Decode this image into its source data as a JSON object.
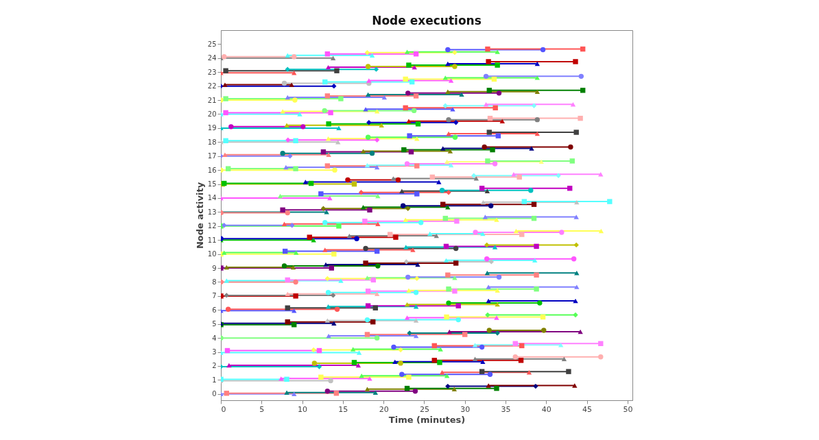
{
  "chart_data": {
    "type": "line",
    "title": "Node executions",
    "xlabel": "Time (minutes)",
    "ylabel": "Node activity",
    "xlim": [
      0,
      50.6
    ],
    "ylim": [
      -0.45,
      26
    ],
    "xticks": [
      0,
      5,
      10,
      15,
      20,
      25,
      30,
      35,
      40,
      45,
      50
    ],
    "yticks": [
      0,
      1,
      2,
      3,
      4,
      5,
      6,
      7,
      8,
      9,
      10,
      11,
      12,
      13,
      14,
      15,
      16,
      17,
      18,
      19,
      20,
      21,
      22,
      23,
      24,
      25
    ],
    "grid": false,
    "legend": false,
    "series": [
      {
        "color": "#808080",
        "marker": "triangle",
        "x": [
          0,
          13.8
        ],
        "values": [
          24,
          24
        ]
      },
      {
        "color": "#ffafaf",
        "marker": "circle",
        "x": [
          0.4,
          9
        ],
        "values": [
          24.1,
          24.1
        ]
      },
      {
        "color": "#55ffff",
        "marker": "triangle",
        "x": [
          8.2,
          18.6
        ],
        "values": [
          24.2,
          24.2
        ]
      },
      {
        "color": "#ff55ff",
        "marker": "square",
        "x": [
          13.1,
          24
        ],
        "values": [
          24.3,
          24.3
        ]
      },
      {
        "color": "#ffff55",
        "marker": "diamond",
        "x": [
          18,
          28.75
        ],
        "values": [
          24.4,
          24.4
        ]
      },
      {
        "color": "#55ff55",
        "marker": "triangle",
        "x": [
          22.9,
          34
        ],
        "values": [
          24.45,
          24.45
        ]
      },
      {
        "color": "#5555ff",
        "marker": "circle",
        "x": [
          27.9,
          39.6
        ],
        "values": [
          24.6,
          24.6
        ]
      },
      {
        "color": "#ff5555",
        "marker": "square",
        "x": [
          32.8,
          44.5
        ],
        "values": [
          24.65,
          24.65
        ]
      },
      {
        "color": "#ff5555",
        "marker": "triangle",
        "x": [
          0,
          9
        ],
        "values": [
          22.95,
          22.95
        ]
      },
      {
        "color": "#404040",
        "marker": "square",
        "x": [
          0.6,
          14.25
        ],
        "values": [
          23.1,
          23.1
        ]
      },
      {
        "color": "#00c0c0",
        "marker": "diamond",
        "x": [
          8.2,
          19.1
        ],
        "values": [
          23.2,
          23.2
        ]
      },
      {
        "color": "#c000c0",
        "marker": "triangle",
        "x": [
          13.2,
          23.8
        ],
        "values": [
          23.35,
          23.35
        ]
      },
      {
        "color": "#c0c000",
        "marker": "circle",
        "x": [
          18.1,
          28.75
        ],
        "values": [
          23.4,
          23.4
        ]
      },
      {
        "color": "#00c000",
        "marker": "square",
        "x": [
          23.1,
          34
        ],
        "values": [
          23.5,
          23.5
        ]
      },
      {
        "color": "#0000c0",
        "marker": "triangle",
        "x": [
          27.9,
          38.9
        ],
        "values": [
          23.6,
          23.6
        ]
      },
      {
        "color": "#c00000",
        "marker": "square",
        "x": [
          32.9,
          43.6
        ],
        "values": [
          23.75,
          23.75
        ]
      },
      {
        "color": "#0000c0",
        "marker": "diamond",
        "x": [
          0,
          13.9
        ],
        "values": [
          22,
          22
        ]
      },
      {
        "color": "#800000",
        "marker": "triangle",
        "x": [
          0.5,
          8.7
        ],
        "values": [
          22.1,
          22.1
        ]
      },
      {
        "color": "#c0c0c0",
        "marker": "circle",
        "x": [
          7.8,
          18.2
        ],
        "values": [
          22.2,
          22.2
        ]
      },
      {
        "color": "#55ffff",
        "marker": "square",
        "x": [
          12.8,
          23.5
        ],
        "values": [
          22.3,
          22.3
        ]
      },
      {
        "color": "#ff55ff",
        "marker": "triangle",
        "x": [
          18.2,
          28.3
        ],
        "values": [
          22.4,
          22.4
        ]
      },
      {
        "color": "#ffff55",
        "marker": "square",
        "x": [
          22.7,
          33.6
        ],
        "values": [
          22.5,
          22.5
        ]
      },
      {
        "color": "#55ff55",
        "marker": "triangle",
        "x": [
          27.6,
          38.9
        ],
        "values": [
          22.6,
          22.6
        ]
      },
      {
        "color": "#8080ff",
        "marker": "circle",
        "x": [
          32.6,
          44.3
        ],
        "values": [
          22.7,
          22.7
        ]
      },
      {
        "color": "#ffff55",
        "marker": "circle",
        "x": [
          0,
          9.1
        ],
        "values": [
          21,
          21
        ]
      },
      {
        "color": "#80ff80",
        "marker": "square",
        "x": [
          0.6,
          14.75
        ],
        "values": [
          21.1,
          21.1
        ]
      },
      {
        "color": "#8080ff",
        "marker": "triangle",
        "x": [
          8.2,
          20.1
        ],
        "values": [
          21.2,
          21.2
        ]
      },
      {
        "color": "#ff8080",
        "marker": "square",
        "x": [
          13.1,
          24
        ],
        "values": [
          21.3,
          21.3
        ]
      },
      {
        "color": "#008080",
        "marker": "triangle",
        "x": [
          18.1,
          29.6
        ],
        "values": [
          21.4,
          21.4
        ]
      },
      {
        "color": "#800080",
        "marker": "circle",
        "x": [
          23,
          34.2
        ],
        "values": [
          21.5,
          21.5
        ]
      },
      {
        "color": "#808000",
        "marker": "triangle",
        "x": [
          27.9,
          38.9
        ],
        "values": [
          21.6,
          21.6
        ]
      },
      {
        "color": "#008000",
        "marker": "square",
        "x": [
          33,
          44.5
        ],
        "values": [
          21.7,
          21.7
        ]
      },
      {
        "color": "#55ffff",
        "marker": "triangle",
        "x": [
          0,
          9.7
        ],
        "values": [
          20,
          20
        ]
      },
      {
        "color": "#ff55ff",
        "marker": "square",
        "x": [
          0.6,
          13.5
        ],
        "values": [
          20.1,
          20.1
        ]
      },
      {
        "color": "#ffff55",
        "marker": "triangle",
        "x": [
          7.6,
          19.2
        ],
        "values": [
          20.2,
          20.2
        ]
      },
      {
        "color": "#80ff80",
        "marker": "circle",
        "x": [
          12.75,
          23.75
        ],
        "values": [
          20.25,
          20.25
        ]
      },
      {
        "color": "#5555ff",
        "marker": "triangle",
        "x": [
          17.8,
          28.5
        ],
        "values": [
          20.35,
          20.35
        ]
      },
      {
        "color": "#ff5555",
        "marker": "square",
        "x": [
          22.7,
          33.75
        ],
        "values": [
          20.45,
          20.45
        ]
      },
      {
        "color": "#80ffff",
        "marker": "diamond",
        "x": [
          27.6,
          38.5
        ],
        "values": [
          20.6,
          20.6
        ]
      },
      {
        "color": "#ff80ff",
        "marker": "triangle",
        "x": [
          32.6,
          43.3
        ],
        "values": [
          20.7,
          20.7
        ]
      },
      {
        "color": "#00c0c0",
        "marker": "triangle",
        "x": [
          0,
          14.5
        ],
        "values": [
          19,
          19
        ]
      },
      {
        "color": "#c000c0",
        "marker": "circle",
        "x": [
          1.25,
          10.1
        ],
        "values": [
          19.1,
          19.1
        ]
      },
      {
        "color": "#c0c000",
        "marker": "triangle",
        "x": [
          8.1,
          19.75
        ],
        "values": [
          19.2,
          19.2
        ]
      },
      {
        "color": "#00c000",
        "marker": "square",
        "x": [
          13.25,
          24.25
        ],
        "values": [
          19.3,
          19.3
        ]
      },
      {
        "color": "#0000c0",
        "marker": "diamond",
        "x": [
          18.2,
          28.9
        ],
        "values": [
          19.4,
          19.4
        ]
      },
      {
        "color": "#c00000",
        "marker": "triangle",
        "x": [
          23.1,
          34.6
        ],
        "values": [
          19.5,
          19.5
        ]
      },
      {
        "color": "#808080",
        "marker": "circle",
        "x": [
          28,
          38.9
        ],
        "values": [
          19.6,
          19.6
        ]
      },
      {
        "color": "#ffafaf",
        "marker": "square",
        "x": [
          33.1,
          44.2
        ],
        "values": [
          19.7,
          19.7
        ]
      },
      {
        "color": "#c0c0c0",
        "marker": "triangle",
        "x": [
          0,
          14.4
        ],
        "values": [
          18,
          18
        ]
      },
      {
        "color": "#55ffff",
        "marker": "square",
        "x": [
          0.6,
          9.2
        ],
        "values": [
          18.1,
          18.1
        ]
      },
      {
        "color": "#ff55ff",
        "marker": "diamond",
        "x": [
          8.25,
          19.2
        ],
        "values": [
          18.15,
          18.15
        ]
      },
      {
        "color": "#ffff55",
        "marker": "triangle",
        "x": [
          13.2,
          24.1
        ],
        "values": [
          18.25,
          18.25
        ]
      },
      {
        "color": "#55ff55",
        "marker": "circle",
        "x": [
          18.1,
          28.8
        ],
        "values": [
          18.35,
          18.35
        ]
      },
      {
        "color": "#5555ff",
        "marker": "square",
        "x": [
          23.2,
          34.1
        ],
        "values": [
          18.45,
          18.45
        ]
      },
      {
        "color": "#ff5555",
        "marker": "triangle",
        "x": [
          28,
          38.9
        ],
        "values": [
          18.6,
          18.6
        ]
      },
      {
        "color": "#404040",
        "marker": "square",
        "x": [
          33,
          43.7
        ],
        "values": [
          18.7,
          18.7
        ]
      },
      {
        "color": "#8080ff",
        "marker": "diamond",
        "x": [
          0,
          8.5
        ],
        "values": [
          17,
          17
        ]
      },
      {
        "color": "#ff8080",
        "marker": "triangle",
        "x": [
          0.5,
          13.25
        ],
        "values": [
          17.1,
          17.1
        ]
      },
      {
        "color": "#008080",
        "marker": "circle",
        "x": [
          7.6,
          18.6
        ],
        "values": [
          17.2,
          17.2
        ]
      },
      {
        "color": "#800080",
        "marker": "square",
        "x": [
          12.6,
          23.4
        ],
        "values": [
          17.3,
          17.3
        ]
      },
      {
        "color": "#808000",
        "marker": "triangle",
        "x": [
          17.5,
          28.2
        ],
        "values": [
          17.35,
          17.35
        ]
      },
      {
        "color": "#008000",
        "marker": "square",
        "x": [
          22.5,
          33.4
        ],
        "values": [
          17.45,
          17.45
        ]
      },
      {
        "color": "#000080",
        "marker": "triangle",
        "x": [
          27.3,
          38.2
        ],
        "values": [
          17.55,
          17.55
        ]
      },
      {
        "color": "#800000",
        "marker": "circle",
        "x": [
          32.4,
          43
        ],
        "values": [
          17.65,
          17.65
        ]
      },
      {
        "color": "#ffff55",
        "marker": "circle",
        "x": [
          0,
          14
        ],
        "values": [
          16,
          16
        ]
      },
      {
        "color": "#80ff80",
        "marker": "square",
        "x": [
          0.9,
          9.2
        ],
        "values": [
          16.1,
          16.1
        ]
      },
      {
        "color": "#8080ff",
        "marker": "triangle",
        "x": [
          8,
          19.2
        ],
        "values": [
          16.2,
          16.2
        ]
      },
      {
        "color": "#ff8080",
        "marker": "square",
        "x": [
          13.1,
          24.1
        ],
        "values": [
          16.3,
          16.3
        ]
      },
      {
        "color": "#80ffff",
        "marker": "triangle",
        "x": [
          18,
          28.3
        ],
        "values": [
          16.35,
          16.35
        ]
      },
      {
        "color": "#ff80ff",
        "marker": "circle",
        "x": [
          22.9,
          33.7
        ],
        "values": [
          16.45,
          16.45
        ]
      },
      {
        "color": "#ffff80",
        "marker": "triangle",
        "x": [
          27.8,
          39.4
        ],
        "values": [
          16.6,
          16.6
        ]
      },
      {
        "color": "#80ff80",
        "marker": "square",
        "x": [
          32.8,
          43.2
        ],
        "values": [
          16.65,
          16.65
        ]
      },
      {
        "color": "#c0c000",
        "marker": "square",
        "x": [
          0.2,
          16.4
        ],
        "values": [
          15,
          15
        ]
      },
      {
        "color": "#00c000",
        "marker": "square",
        "x": [
          0.4,
          11.1
        ],
        "values": [
          15.05,
          15.05
        ]
      },
      {
        "color": "#0000c0",
        "marker": "triangle",
        "x": [
          10.4,
          26.8
        ],
        "values": [
          15.15,
          15.15
        ]
      },
      {
        "color": "#c00000",
        "marker": "circle",
        "x": [
          15.6,
          21.8
        ],
        "values": [
          15.3,
          15.3
        ]
      },
      {
        "color": "#808080",
        "marker": "triangle",
        "x": [
          21.2,
          31.4
        ],
        "values": [
          15.4,
          15.4
        ]
      },
      {
        "color": "#ffafaf",
        "marker": "square",
        "x": [
          26,
          36.7
        ],
        "values": [
          15.5,
          15.5
        ]
      },
      {
        "color": "#80ffff",
        "marker": "diamond",
        "x": [
          31.1,
          41.5
        ],
        "values": [
          15.6,
          15.6
        ]
      },
      {
        "color": "#ff80ff",
        "marker": "triangle",
        "x": [
          36,
          46.7
        ],
        "values": [
          15.7,
          15.7
        ]
      },
      {
        "color": "#ff55ff",
        "marker": "triangle",
        "x": [
          0,
          13.4
        ],
        "values": [
          14,
          14
        ]
      },
      {
        "color": "#80ff80",
        "marker": "triangle",
        "x": [
          7.3,
          19.3
        ],
        "values": [
          14.15,
          14.15
        ]
      },
      {
        "color": "#5555ff",
        "marker": "square",
        "x": [
          12.3,
          24.1
        ],
        "values": [
          14.3,
          14.3
        ]
      },
      {
        "color": "#ff5555",
        "marker": "diamond",
        "x": [
          17.25,
          28
        ],
        "values": [
          14.4,
          14.4
        ]
      },
      {
        "color": "#404040",
        "marker": "triangle",
        "x": [
          22.25,
          32.75
        ],
        "values": [
          14.5,
          14.5
        ]
      },
      {
        "color": "#00c0c0",
        "marker": "circle",
        "x": [
          27.2,
          38.1
        ],
        "values": [
          14.55,
          14.55
        ]
      },
      {
        "color": "#c000c0",
        "marker": "square",
        "x": [
          32.1,
          42.9
        ],
        "values": [
          14.7,
          14.7
        ]
      },
      {
        "color": "#008080",
        "marker": "triangle",
        "x": [
          0,
          13
        ],
        "values": [
          13,
          13
        ]
      },
      {
        "color": "#ff8080",
        "marker": "circle",
        "x": [
          0,
          8.2
        ],
        "values": [
          12.95,
          12.95
        ]
      },
      {
        "color": "#800080",
        "marker": "square",
        "x": [
          7.6,
          18.3
        ],
        "values": [
          13.15,
          13.15
        ]
      },
      {
        "color": "#808000",
        "marker": "diamond",
        "x": [
          12.6,
          23
        ],
        "values": [
          13.25,
          13.25
        ]
      },
      {
        "color": "#008000",
        "marker": "triangle",
        "x": [
          17.5,
          27.9
        ],
        "values": [
          13.35,
          13.35
        ]
      },
      {
        "color": "#000080",
        "marker": "circle",
        "x": [
          22.4,
          33.2
        ],
        "values": [
          13.45,
          13.45
        ]
      },
      {
        "color": "#800000",
        "marker": "square",
        "x": [
          27.3,
          38.5
        ],
        "values": [
          13.55,
          13.55
        ]
      },
      {
        "color": "#c0c0c0",
        "marker": "triangle",
        "x": [
          32.25,
          43.75
        ],
        "values": [
          13.7,
          13.7
        ]
      },
      {
        "color": "#55ffff",
        "marker": "square",
        "x": [
          37.3,
          47.8
        ],
        "values": [
          13.75,
          13.75
        ]
      },
      {
        "color": "#55ff55",
        "marker": "square",
        "x": [
          0,
          14.5
        ],
        "values": [
          12,
          12
        ]
      },
      {
        "color": "#8080ff",
        "marker": "diamond",
        "x": [
          0.4,
          8.75
        ],
        "values": [
          12.05,
          12.05
        ]
      },
      {
        "color": "#ff5555",
        "marker": "triangle",
        "x": [
          7.8,
          19.3
        ],
        "values": [
          12.15,
          12.15
        ]
      },
      {
        "color": "#55ffff",
        "marker": "circle",
        "x": [
          12.8,
          24.6
        ],
        "values": [
          12.25,
          12.25
        ]
      },
      {
        "color": "#ff80ff",
        "marker": "square",
        "x": [
          17.7,
          29
        ],
        "values": [
          12.35,
          12.35
        ]
      },
      {
        "color": "#ffff55",
        "marker": "triangle",
        "x": [
          22.7,
          33.9
        ],
        "values": [
          12.45,
          12.45
        ]
      },
      {
        "color": "#80ff80",
        "marker": "square",
        "x": [
          27.6,
          38.5
        ],
        "values": [
          12.55,
          12.55
        ]
      },
      {
        "color": "#8080ff",
        "marker": "triangle",
        "x": [
          32.5,
          43.7
        ],
        "values": [
          12.65,
          12.65
        ]
      },
      {
        "color": "#00c000",
        "marker": "triangle",
        "x": [
          0,
          11.4
        ],
        "values": [
          11,
          11
        ]
      },
      {
        "color": "#0000c0",
        "marker": "circle",
        "x": [
          0,
          16.7
        ],
        "values": [
          11.1,
          11.1
        ]
      },
      {
        "color": "#c00000",
        "marker": "square",
        "x": [
          10.9,
          21.5
        ],
        "values": [
          11.2,
          11.2
        ]
      },
      {
        "color": "#808080",
        "marker": "triangle",
        "x": [
          15.8,
          26.5
        ],
        "values": [
          11.3,
          11.3
        ]
      },
      {
        "color": "#ffafaf",
        "marker": "square",
        "x": [
          20.8,
          37
        ],
        "values": [
          11.4,
          11.4
        ]
      },
      {
        "color": "#55ffff",
        "marker": "triangle",
        "x": [
          25.7,
          32.2
        ],
        "values": [
          11.45,
          11.45
        ]
      },
      {
        "color": "#ff80ff",
        "marker": "circle",
        "x": [
          31.3,
          41.9
        ],
        "values": [
          11.55,
          11.55
        ]
      },
      {
        "color": "#ffff55",
        "marker": "triangle",
        "x": [
          36.3,
          46.75
        ],
        "values": [
          11.65,
          11.65
        ]
      },
      {
        "color": "#ffff55",
        "marker": "square",
        "x": [
          0,
          13.9
        ],
        "values": [
          10,
          10
        ]
      },
      {
        "color": "#55ff55",
        "marker": "triangle",
        "x": [
          0.4,
          9.25
        ],
        "values": [
          10.1,
          10.1
        ]
      },
      {
        "color": "#5555ff",
        "marker": "square",
        "x": [
          7.9,
          19.2
        ],
        "values": [
          10.2,
          10.2
        ]
      },
      {
        "color": "#ff5555",
        "marker": "triangle",
        "x": [
          12.8,
          23.6
        ],
        "values": [
          10.3,
          10.3
        ]
      },
      {
        "color": "#404040",
        "marker": "circle",
        "x": [
          17.8,
          28.9
        ],
        "values": [
          10.4,
          10.4
        ]
      },
      {
        "color": "#00c0c0",
        "marker": "triangle",
        "x": [
          22.75,
          33.7
        ],
        "values": [
          10.5,
          10.5
        ]
      },
      {
        "color": "#c000c0",
        "marker": "square",
        "x": [
          27.7,
          38.8
        ],
        "values": [
          10.55,
          10.55
        ]
      },
      {
        "color": "#c0c000",
        "marker": "diamond",
        "x": [
          32.7,
          43.7
        ],
        "values": [
          10.65,
          10.65
        ]
      },
      {
        "color": "#800080",
        "marker": "square",
        "x": [
          0,
          13.6
        ],
        "values": [
          9,
          9
        ]
      },
      {
        "color": "#808000",
        "marker": "triangle",
        "x": [
          0.7,
          8.9
        ],
        "values": [
          9.05,
          9.05
        ]
      },
      {
        "color": "#008000",
        "marker": "circle",
        "x": [
          7.8,
          19.3
        ],
        "values": [
          9.15,
          9.15
        ]
      },
      {
        "color": "#000080",
        "marker": "triangle",
        "x": [
          12.9,
          24.2
        ],
        "values": [
          9.25,
          9.25
        ]
      },
      {
        "color": "#800000",
        "marker": "square",
        "x": [
          17.8,
          28.9
        ],
        "values": [
          9.35,
          9.35
        ]
      },
      {
        "color": "#c0c0c0",
        "marker": "diamond",
        "x": [
          22.8,
          33.25
        ],
        "values": [
          9.45,
          9.45
        ]
      },
      {
        "color": "#55ffff",
        "marker": "triangle",
        "x": [
          27.7,
          38.6
        ],
        "values": [
          9.55,
          9.55
        ]
      },
      {
        "color": "#ff55ff",
        "marker": "circle",
        "x": [
          32.7,
          43.4
        ],
        "values": [
          9.65,
          9.65
        ]
      },
      {
        "color": "#ff8080",
        "marker": "circle",
        "x": [
          0,
          9.2
        ],
        "values": [
          8,
          8
        ]
      },
      {
        "color": "#55ffff",
        "marker": "triangle",
        "x": [
          0.7,
          14.75
        ],
        "values": [
          8.1,
          8.1
        ]
      },
      {
        "color": "#ff80ff",
        "marker": "square",
        "x": [
          8.2,
          18.75
        ],
        "values": [
          8.15,
          8.15
        ]
      },
      {
        "color": "#ffff55",
        "marker": "diamond",
        "x": [
          13.1,
          24.1
        ],
        "values": [
          8.25,
          8.25
        ]
      },
      {
        "color": "#80ff80",
        "marker": "triangle",
        "x": [
          18,
          28.75
        ],
        "values": [
          8.3,
          8.3
        ]
      },
      {
        "color": "#8080ff",
        "marker": "circle",
        "x": [
          23,
          34.2
        ],
        "values": [
          8.35,
          8.35
        ]
      },
      {
        "color": "#ff8080",
        "marker": "square",
        "x": [
          27.9,
          38.8
        ],
        "values": [
          8.5,
          8.5
        ]
      },
      {
        "color": "#008080",
        "marker": "triangle",
        "x": [
          32.75,
          43.75
        ],
        "values": [
          8.65,
          8.65
        ]
      },
      {
        "color": "#c00000",
        "marker": "square",
        "x": [
          0,
          9.2
        ],
        "values": [
          7,
          7
        ]
      },
      {
        "color": "#808080",
        "marker": "diamond",
        "x": [
          0.7,
          13.8
        ],
        "values": [
          7.05,
          7.05
        ]
      },
      {
        "color": "#ffafaf",
        "marker": "triangle",
        "x": [
          8.2,
          19.2
        ],
        "values": [
          7.15,
          7.15
        ]
      },
      {
        "color": "#55ffff",
        "marker": "circle",
        "x": [
          13.2,
          24
        ],
        "values": [
          7.25,
          7.25
        ]
      },
      {
        "color": "#ff80ff",
        "marker": "square",
        "x": [
          18.1,
          28.75
        ],
        "values": [
          7.35,
          7.35
        ]
      },
      {
        "color": "#ffff55",
        "marker": "triangle",
        "x": [
          23.1,
          34
        ],
        "values": [
          7.4,
          7.4
        ]
      },
      {
        "color": "#80ff80",
        "marker": "square",
        "x": [
          28,
          38.8
        ],
        "values": [
          7.5,
          7.5
        ]
      },
      {
        "color": "#8080ff",
        "marker": "triangle",
        "x": [
          32.9,
          43.75
        ],
        "values": [
          7.65,
          7.65
        ]
      },
      {
        "color": "#5555ff",
        "marker": "triangle",
        "x": [
          0,
          9
        ],
        "values": [
          5.95,
          5.95
        ]
      },
      {
        "color": "#ff5555",
        "marker": "circle",
        "x": [
          0.9,
          14.3
        ],
        "values": [
          6.05,
          6.05
        ]
      },
      {
        "color": "#404040",
        "marker": "square",
        "x": [
          8.2,
          19
        ],
        "values": [
          6.15,
          6.15
        ]
      },
      {
        "color": "#00c0c0",
        "marker": "triangle",
        "x": [
          13.2,
          24
        ],
        "values": [
          6.25,
          6.25
        ]
      },
      {
        "color": "#c000c0",
        "marker": "square",
        "x": [
          18.1,
          29.2
        ],
        "values": [
          6.3,
          6.3
        ]
      },
      {
        "color": "#c0c000",
        "marker": "triangle",
        "x": [
          22.9,
          34
        ],
        "values": [
          6.4,
          6.4
        ]
      },
      {
        "color": "#00c000",
        "marker": "circle",
        "x": [
          28,
          39.2
        ],
        "values": [
          6.5,
          6.5
        ]
      },
      {
        "color": "#0000c0",
        "marker": "triangle",
        "x": [
          32.9,
          43.6
        ],
        "values": [
          6.65,
          6.65
        ]
      },
      {
        "color": "#008000",
        "marker": "square",
        "x": [
          0,
          9
        ],
        "values": [
          4.95,
          4.95
        ]
      },
      {
        "color": "#000080",
        "marker": "triangle",
        "x": [
          0,
          13.9
        ],
        "values": [
          5.05,
          5.05
        ]
      },
      {
        "color": "#800000",
        "marker": "square",
        "x": [
          8.2,
          18.7
        ],
        "values": [
          5.15,
          5.15
        ]
      },
      {
        "color": "#c0c0c0",
        "marker": "triangle",
        "x": [
          13.1,
          24
        ],
        "values": [
          5.25,
          5.25
        ]
      },
      {
        "color": "#55ffff",
        "marker": "circle",
        "x": [
          18,
          29.2
        ],
        "values": [
          5.3,
          5.3
        ]
      },
      {
        "color": "#ff55ff",
        "marker": "triangle",
        "x": [
          22.9,
          33.9
        ],
        "values": [
          5.45,
          5.45
        ]
      },
      {
        "color": "#ffff55",
        "marker": "square",
        "x": [
          27.75,
          39.6
        ],
        "values": [
          5.5,
          5.5
        ]
      },
      {
        "color": "#55ff55",
        "marker": "diamond",
        "x": [
          32.8,
          43.6
        ],
        "values": [
          5.65,
          5.65
        ]
      },
      {
        "color": "#80ff80",
        "marker": "circle",
        "x": [
          0,
          19.2
        ],
        "values": [
          4,
          4
        ]
      },
      {
        "color": "#8080ff",
        "marker": "triangle",
        "x": [
          13.25,
          24
        ],
        "values": [
          4.15,
          4.15
        ]
      },
      {
        "color": "#ff8080",
        "marker": "square",
        "x": [
          18,
          30
        ],
        "values": [
          4.25,
          4.25
        ]
      },
      {
        "color": "#008080",
        "marker": "diamond",
        "x": [
          23.2,
          34
        ],
        "values": [
          4.35,
          4.35
        ]
      },
      {
        "color": "#800080",
        "marker": "triangle",
        "x": [
          28.1,
          44.2
        ],
        "values": [
          4.45,
          4.45
        ]
      },
      {
        "color": "#808000",
        "marker": "circle",
        "x": [
          33,
          39.7
        ],
        "values": [
          4.55,
          4.55
        ]
      },
      {
        "color": "#55ffff",
        "marker": "triangle",
        "x": [
          0,
          17
        ],
        "values": [
          2.95,
          2.95
        ]
      },
      {
        "color": "#ff55ff",
        "marker": "square",
        "x": [
          0.8,
          12.1
        ],
        "values": [
          3.1,
          3.1
        ]
      },
      {
        "color": "#ffff55",
        "marker": "diamond",
        "x": [
          11.4,
          22.1
        ],
        "values": [
          3.15,
          3.15
        ]
      },
      {
        "color": "#55ff55",
        "marker": "triangle",
        "x": [
          16.25,
          27
        ],
        "values": [
          3.2,
          3.2
        ]
      },
      {
        "color": "#5555ff",
        "marker": "circle",
        "x": [
          21.25,
          32.1
        ],
        "values": [
          3.35,
          3.35
        ]
      },
      {
        "color": "#ff5555",
        "marker": "square",
        "x": [
          26.25,
          37
        ],
        "values": [
          3.45,
          3.45
        ]
      },
      {
        "color": "#80ffff",
        "marker": "triangle",
        "x": [
          31.25,
          41.8
        ],
        "values": [
          3.5,
          3.5
        ]
      },
      {
        "color": "#ff80ff",
        "marker": "square",
        "x": [
          36.2,
          46.7
        ],
        "values": [
          3.6,
          3.6
        ]
      },
      {
        "color": "#00c0c0",
        "marker": "diamond",
        "x": [
          0,
          12.1
        ],
        "values": [
          1.95,
          1.95
        ]
      },
      {
        "color": "#c000c0",
        "marker": "triangle",
        "x": [
          1,
          16.9
        ],
        "values": [
          2.05,
          2.05
        ]
      },
      {
        "color": "#c0c000",
        "marker": "circle",
        "x": [
          11.5,
          22.1
        ],
        "values": [
          2.2,
          2.2
        ]
      },
      {
        "color": "#00c000",
        "marker": "square",
        "x": [
          16.4,
          26.9
        ],
        "values": [
          2.25,
          2.25
        ]
      },
      {
        "color": "#0000c0",
        "marker": "triangle",
        "x": [
          21.4,
          32.2
        ],
        "values": [
          2.3,
          2.3
        ]
      },
      {
        "color": "#c00000",
        "marker": "square",
        "x": [
          26.25,
          36.9
        ],
        "values": [
          2.4,
          2.4
        ]
      },
      {
        "color": "#808080",
        "marker": "triangle",
        "x": [
          31.25,
          42.2
        ],
        "values": [
          2.5,
          2.5
        ]
      },
      {
        "color": "#ffafaf",
        "marker": "circle",
        "x": [
          36.2,
          46.7
        ],
        "values": [
          2.65,
          2.65
        ]
      },
      {
        "color": "#c0c0c0",
        "marker": "circle",
        "x": [
          0,
          13.5
        ],
        "values": [
          0.95,
          0.95
        ]
      },
      {
        "color": "#55ffff",
        "marker": "square",
        "x": [
          0,
          8.1
        ],
        "values": [
          1.05,
          1.05
        ]
      },
      {
        "color": "#ff55ff",
        "marker": "triangle",
        "x": [
          7.4,
          18.3
        ],
        "values": [
          1.1,
          1.1
        ]
      },
      {
        "color": "#ffff55",
        "marker": "square",
        "x": [
          12.3,
          23.1
        ],
        "values": [
          1.2,
          1.2
        ]
      },
      {
        "color": "#55ff55",
        "marker": "triangle",
        "x": [
          17.3,
          27.8
        ],
        "values": [
          1.3,
          1.3
        ]
      },
      {
        "color": "#5555ff",
        "marker": "circle",
        "x": [
          22.25,
          33.1
        ],
        "values": [
          1.4,
          1.4
        ]
      },
      {
        "color": "#ff5555",
        "marker": "triangle",
        "x": [
          27.2,
          37.9
        ],
        "values": [
          1.55,
          1.55
        ]
      },
      {
        "color": "#404040",
        "marker": "square",
        "x": [
          32.1,
          42.75
        ],
        "values": [
          1.6,
          1.6
        ]
      },
      {
        "color": "#8080ff",
        "marker": "triangle",
        "x": [
          0,
          9
        ],
        "values": [
          0,
          0
        ]
      },
      {
        "color": "#ff8080",
        "marker": "square",
        "x": [
          0.7,
          14.2
        ],
        "values": [
          0.05,
          0.05
        ]
      },
      {
        "color": "#008080",
        "marker": "triangle",
        "x": [
          8.1,
          19
        ],
        "values": [
          0.1,
          0.1
        ]
      },
      {
        "color": "#800080",
        "marker": "circle",
        "x": [
          13.1,
          23.9
        ],
        "values": [
          0.2,
          0.2
        ]
      },
      {
        "color": "#808000",
        "marker": "triangle",
        "x": [
          18,
          28.7
        ],
        "values": [
          0.35,
          0.35
        ]
      },
      {
        "color": "#008000",
        "marker": "square",
        "x": [
          22.9,
          33.9
        ],
        "values": [
          0.4,
          0.4
        ]
      },
      {
        "color": "#000080",
        "marker": "diamond",
        "x": [
          27.9,
          38.7
        ],
        "values": [
          0.55,
          0.55
        ]
      },
      {
        "color": "#800000",
        "marker": "triangle",
        "x": [
          32.9,
          43.5
        ],
        "values": [
          0.6,
          0.6
        ]
      }
    ]
  }
}
